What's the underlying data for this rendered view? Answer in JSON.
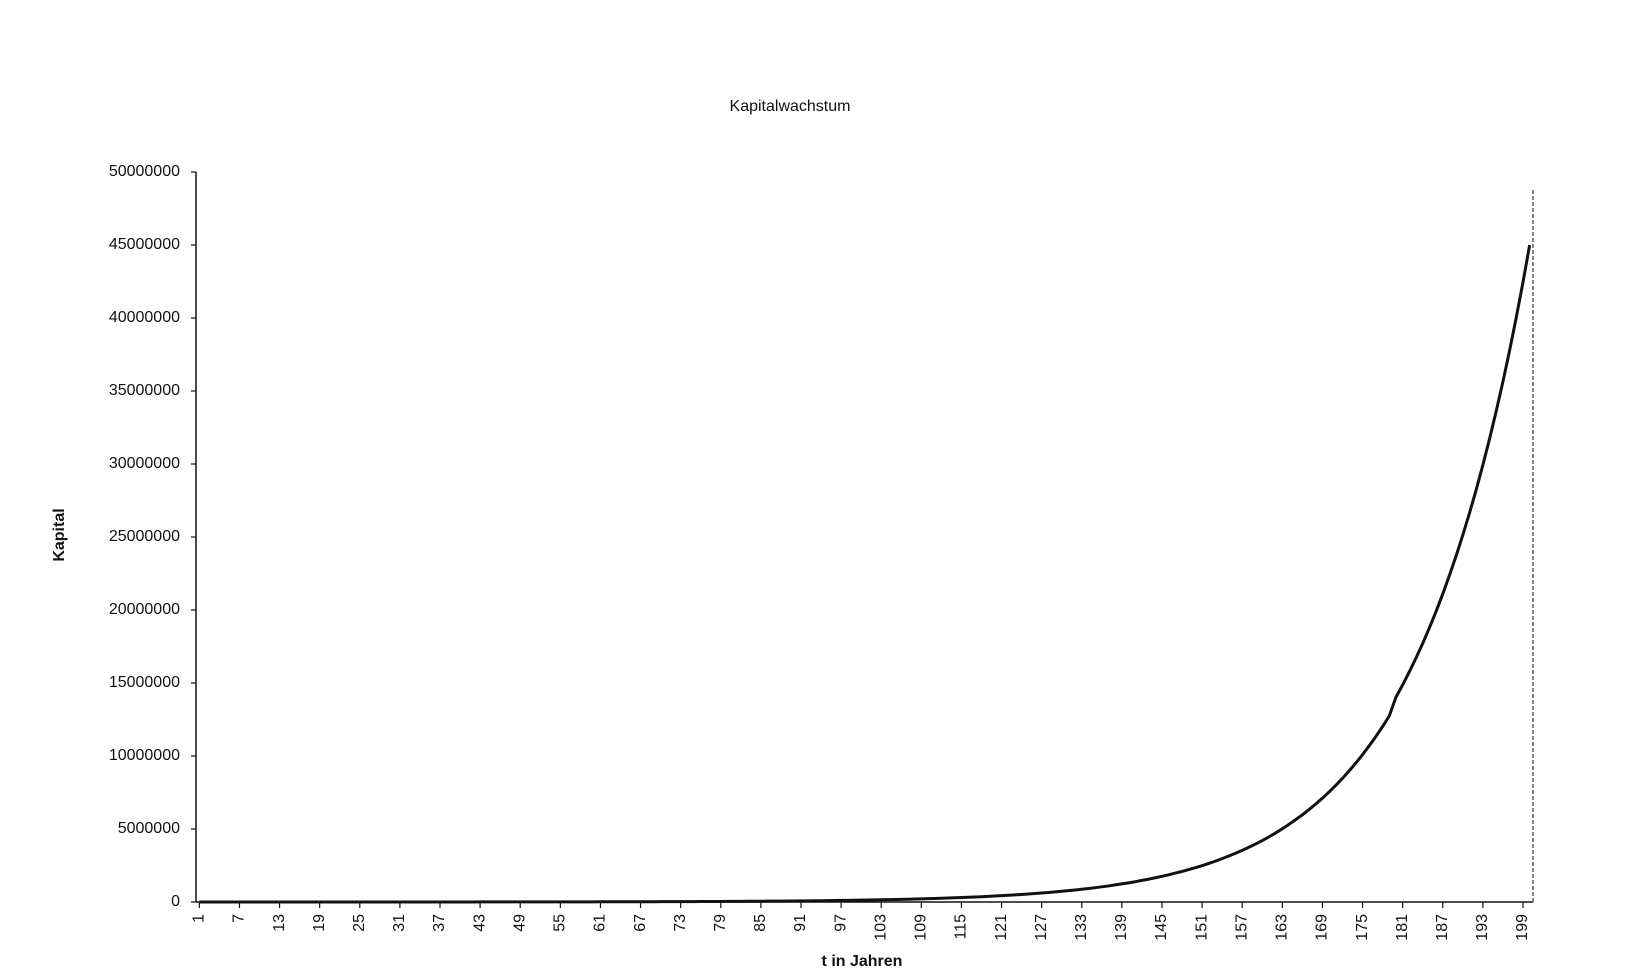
{
  "chart_data": {
    "type": "line",
    "title": "Kapitalwachstum",
    "x_label": "t in Jahren",
    "y_label": "Kapital",
    "x": [
      1,
      2,
      3,
      4,
      5,
      6,
      7,
      8,
      9,
      10,
      11,
      12,
      13,
      14,
      15,
      16,
      17,
      18,
      19,
      20,
      21,
      22,
      23,
      24,
      25,
      26,
      27,
      28,
      29,
      30,
      31,
      32,
      33,
      34,
      35,
      36,
      37,
      38,
      39,
      40,
      41,
      42,
      43,
      44,
      45,
      46,
      47,
      48,
      49,
      50,
      51,
      52,
      53,
      54,
      55,
      56,
      57,
      58,
      59,
      60,
      61,
      62,
      63,
      64,
      65,
      66,
      67,
      68,
      69,
      70,
      71,
      72,
      73,
      74,
      75,
      76,
      77,
      78,
      79,
      80,
      81,
      82,
      83,
      84,
      85,
      86,
      87,
      88,
      89,
      90,
      91,
      92,
      93,
      94,
      95,
      96,
      97,
      98,
      99,
      100,
      101,
      102,
      103,
      104,
      105,
      106,
      107,
      108,
      109,
      110,
      111,
      112,
      113,
      114,
      115,
      116,
      117,
      118,
      119,
      120,
      121,
      122,
      123,
      124,
      125,
      126,
      127,
      128,
      129,
      130,
      131,
      132,
      133,
      134,
      135,
      136,
      137,
      138,
      139,
      140,
      141,
      142,
      143,
      144,
      145,
      146,
      147,
      148,
      149,
      150,
      151,
      152,
      153,
      154,
      155,
      156,
      157,
      158,
      159,
      160,
      161,
      162,
      163,
      164,
      165,
      166,
      167,
      168,
      169,
      170,
      171,
      172,
      173,
      174,
      175,
      176,
      177,
      178,
      179,
      180,
      181,
      182,
      183,
      184,
      185,
      186,
      187,
      188,
      189,
      190,
      191,
      192,
      193,
      194,
      195,
      196,
      197,
      198,
      199,
      200
    ],
    "series": [
      {
        "name": "Kapital",
        "color": "#111111",
        "values": [
          400,
          420,
          450,
          480,
          500,
          530,
          570,
          600,
          640,
          670,
          710,
          760,
          800,
          850,
          900,
          960,
          1010,
          1070,
          1140,
          1210,
          1280,
          1350,
          1440,
          1520,
          1610,
          1710,
          1810,
          1920,
          2040,
          2160,
          2290,
          2430,
          2570,
          2730,
          2890,
          3070,
          3250,
          3450,
          3650,
          3870,
          4100,
          4350,
          4610,
          4890,
          5180,
          5490,
          5820,
          6170,
          6540,
          6930,
          7350,
          7790,
          8260,
          8750,
          9280,
          9830,
          10420,
          11050,
          11710,
          12410,
          13160,
          13950,
          14780,
          15670,
          16610,
          17610,
          18660,
          19780,
          20970,
          22230,
          23560,
          24980,
          26470,
          28060,
          29750,
          31530,
          33420,
          35430,
          37550,
          39810,
          42200,
          44730,
          47410,
          50260,
          53270,
          56470,
          59860,
          63450,
          67260,
          71290,
          75570,
          80100,
          84910,
          90000,
          95400,
          101130,
          107200,
          113630,
          120450,
          127670,
          135330,
          143450,
          152060,
          161180,
          170850,
          181110,
          191970,
          203490,
          215700,
          228640,
          242360,
          256900,
          272310,
          288650,
          305970,
          324000,
          344000,
          364000,
          386000,
          409000,
          434000,
          460000,
          488000,
          517000,
          548000,
          581000,
          616000,
          653000,
          692000,
          733000,
          777000,
          824000,
          873000,
          926000,
          981000,
          1040000,
          1100000,
          1170000,
          1240000,
          1310000,
          1390000,
          1480000,
          1560000,
          1660000,
          1760000,
          1860000,
          1980000,
          2090000,
          2220000,
          2350000,
          2490000,
          2640000,
          2800000,
          2970000,
          3150000,
          3340000,
          3540000,
          3750000,
          3970000,
          4210000,
          4460000,
          4730000,
          5020000,
          5320000,
          5640000,
          5970000,
          6330000,
          6710000,
          7110000,
          7540000,
          7990000,
          8470000,
          8980000,
          9520000,
          10090000,
          10700000,
          11340000,
          12020000,
          12740000,
          14030000,
          14870000,
          15770000,
          16710000,
          17710000,
          18780000,
          19900000,
          21100000,
          22370000,
          23710000,
          25130000,
          26640000,
          28230000,
          29930000,
          31720000,
          33630000,
          35640000,
          37780000,
          40050000,
          42450000,
          45000000
        ]
      }
    ],
    "xlim": [
      0.5,
      200.5
    ],
    "xticks": [
      1,
      7,
      13,
      19,
      25,
      31,
      37,
      43,
      49,
      55,
      61,
      67,
      73,
      79,
      85,
      91,
      97,
      103,
      109,
      115,
      121,
      127,
      133,
      139,
      145,
      151,
      157,
      163,
      169,
      175,
      181,
      187,
      193,
      199
    ],
    "ylim": [
      0,
      50000000
    ],
    "yticks": [
      0,
      5000000,
      10000000,
      15000000,
      20000000,
      25000000,
      30000000,
      35000000,
      40000000,
      45000000,
      50000000
    ],
    "grid": false
  }
}
